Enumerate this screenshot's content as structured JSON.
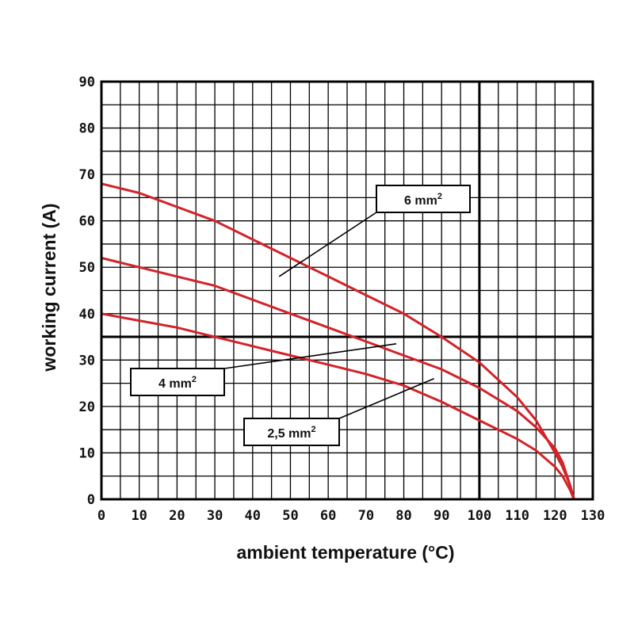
{
  "chart_data": {
    "type": "line",
    "xlabel": "ambient temperature (°C)",
    "ylabel": "working current (A)",
    "xlim": [
      0,
      130
    ],
    "ylim": [
      0,
      90
    ],
    "x_ticks": [
      "0",
      "10",
      "20",
      "30",
      "40",
      "50",
      "60",
      "70",
      "80",
      "90",
      "100",
      "110",
      "120",
      "130"
    ],
    "y_ticks": [
      "0",
      "10",
      "20",
      "30",
      "40",
      "50",
      "60",
      "70",
      "80",
      "90"
    ],
    "grid": true,
    "grid_step": {
      "x": 5,
      "y": 5
    },
    "reference_lines": {
      "x": 100,
      "y": 35
    },
    "line_color": "#d2232a",
    "series": [
      {
        "name": "6 mm²",
        "label_main": "6 mm",
        "label_sup": "2",
        "points": [
          [
            0,
            68
          ],
          [
            10,
            66
          ],
          [
            20,
            63
          ],
          [
            30,
            60
          ],
          [
            40,
            56
          ],
          [
            50,
            52
          ],
          [
            60,
            48
          ],
          [
            70,
            44
          ],
          [
            80,
            40
          ],
          [
            90,
            35
          ],
          [
            100,
            29.5
          ],
          [
            110,
            22
          ],
          [
            115,
            17
          ],
          [
            120,
            10
          ],
          [
            122,
            7
          ],
          [
            124,
            3
          ],
          [
            125,
            0
          ]
        ]
      },
      {
        "name": "4 mm²",
        "label_main": "4 mm",
        "label_sup": "2",
        "points": [
          [
            0,
            52
          ],
          [
            10,
            50
          ],
          [
            20,
            48
          ],
          [
            30,
            46
          ],
          [
            40,
            43
          ],
          [
            50,
            40
          ],
          [
            60,
            37
          ],
          [
            70,
            34
          ],
          [
            80,
            31
          ],
          [
            90,
            28
          ],
          [
            100,
            24
          ],
          [
            110,
            19
          ],
          [
            115,
            15.5
          ],
          [
            120,
            11
          ],
          [
            122,
            8
          ],
          [
            124,
            3
          ],
          [
            125,
            0
          ]
        ]
      },
      {
        "name": "2,5 mm²",
        "label_main": "2,5 mm",
        "label_sup": "2",
        "points": [
          [
            0,
            40
          ],
          [
            10,
            38.5
          ],
          [
            20,
            37
          ],
          [
            30,
            35
          ],
          [
            40,
            33
          ],
          [
            50,
            31
          ],
          [
            60,
            29
          ],
          [
            70,
            27
          ],
          [
            80,
            24.5
          ],
          [
            90,
            21
          ],
          [
            100,
            17
          ],
          [
            110,
            13
          ],
          [
            115,
            10.5
          ],
          [
            120,
            7
          ],
          [
            122,
            5
          ],
          [
            124,
            2
          ],
          [
            125,
            0
          ]
        ]
      }
    ]
  }
}
